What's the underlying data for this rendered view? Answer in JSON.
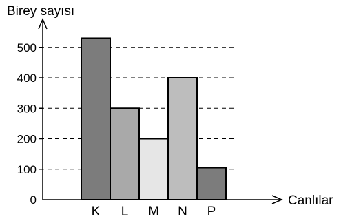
{
  "chart_data": {
    "type": "bar",
    "ylabel": "Birey sayısı",
    "xlabel": "Canlılar",
    "categories": [
      "K",
      "L",
      "M",
      "N",
      "P"
    ],
    "values": [
      530,
      300,
      200,
      400,
      105
    ],
    "yticks": [
      0,
      100,
      200,
      300,
      400,
      500
    ],
    "ytick_labels": [
      "0",
      "100",
      "200",
      "300",
      "400",
      "500"
    ],
    "ylim": [
      0,
      600
    ],
    "grid": "dashed lines at 100, 200, 300, 400, 500",
    "bar_colors": [
      "#7c7c7c",
      "#a9a9a9",
      "#e6e6e6",
      "#bdbdbd",
      "#7c7c7c"
    ]
  }
}
